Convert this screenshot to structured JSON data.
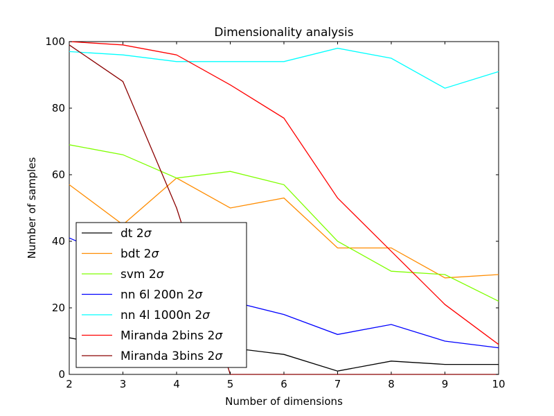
{
  "chart_data": {
    "type": "line",
    "title": "Dimensionality analysis",
    "xlabel": "Number of dimensions",
    "ylabel": "Number of samples",
    "xlim": [
      2,
      10
    ],
    "ylim": [
      0,
      100
    ],
    "xticks": [
      2,
      3,
      4,
      5,
      6,
      7,
      8,
      9,
      10
    ],
    "yticks": [
      0,
      20,
      40,
      60,
      80,
      100
    ],
    "x": [
      2,
      3,
      4,
      5,
      6,
      7,
      8,
      9,
      10
    ],
    "legend_position": "lower-left",
    "series": [
      {
        "name": "dt 2",
        "sigma": "σ",
        "color": "#000000",
        "values": [
          11,
          8,
          9,
          8,
          6,
          1,
          4,
          3,
          3
        ]
      },
      {
        "name": "bdt 2",
        "sigma": "σ",
        "color": "#ff8c00",
        "values": [
          57,
          45,
          59,
          50,
          53,
          38,
          38,
          29,
          30
        ]
      },
      {
        "name": "svm 2",
        "sigma": "σ",
        "color": "#7fff00",
        "values": [
          69,
          66,
          59,
          61,
          57,
          40,
          31,
          30,
          22
        ]
      },
      {
        "name": "nn 6l 200n 2",
        "sigma": "σ",
        "color": "#0000ff",
        "values": [
          41,
          34,
          26,
          22,
          18,
          12,
          15,
          10,
          8
        ]
      },
      {
        "name": "nn 4l 1000n 2",
        "sigma": "σ",
        "color": "#00ffff",
        "values": [
          97,
          96,
          94,
          94,
          94,
          98,
          95,
          86,
          91
        ]
      },
      {
        "name": "Miranda 2bins 2",
        "sigma": "σ",
        "color": "#ff0000",
        "values": [
          100,
          99,
          96,
          87,
          77,
          53,
          37,
          21,
          9
        ]
      },
      {
        "name": "Miranda 3bins 2",
        "sigma": "σ",
        "color": "#8b0000",
        "values": [
          99,
          88,
          50,
          0,
          0,
          0,
          0,
          0,
          0
        ]
      }
    ]
  }
}
